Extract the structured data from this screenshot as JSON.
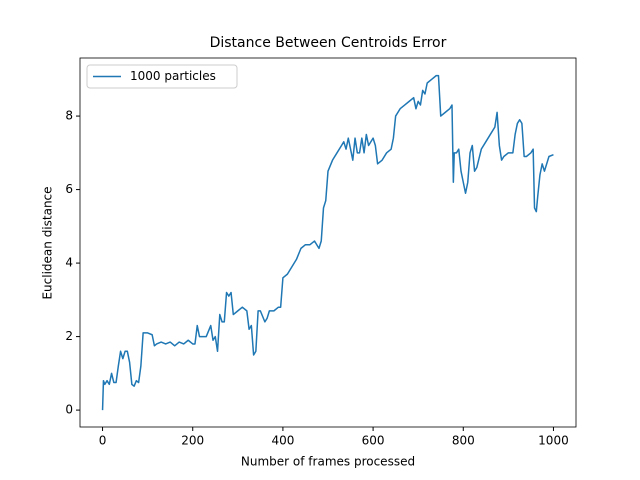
{
  "chart_data": {
    "type": "line",
    "title": "Distance Between Centroids Error",
    "x_label": "Number of frames processed",
    "y_label": "Euclidean distance",
    "x": [
      0,
      2,
      5,
      10,
      15,
      20,
      25,
      30,
      35,
      40,
      45,
      50,
      55,
      60,
      65,
      70,
      75,
      80,
      85,
      90,
      100,
      110,
      115,
      120,
      130,
      140,
      150,
      160,
      170,
      180,
      190,
      200,
      205,
      210,
      215,
      220,
      230,
      240,
      245,
      250,
      255,
      260,
      265,
      270,
      275,
      280,
      285,
      290,
      300,
      310,
      320,
      325,
      330,
      335,
      340,
      345,
      350,
      360,
      365,
      370,
      380,
      390,
      395,
      400,
      410,
      420,
      430,
      440,
      450,
      460,
      470,
      480,
      485,
      490,
      495,
      500,
      510,
      520,
      530,
      535,
      540,
      545,
      550,
      555,
      560,
      565,
      570,
      575,
      580,
      585,
      590,
      600,
      605,
      610,
      620,
      630,
      640,
      645,
      650,
      660,
      670,
      680,
      690,
      695,
      700,
      705,
      710,
      715,
      720,
      730,
      740,
      745,
      750,
      760,
      770,
      775,
      778,
      780,
      785,
      790,
      795,
      800,
      805,
      810,
      815,
      820,
      825,
      830,
      840,
      850,
      860,
      870,
      875,
      880,
      885,
      890,
      900,
      910,
      915,
      920,
      925,
      930,
      935,
      940,
      950,
      955,
      958,
      962,
      965,
      970,
      975,
      980,
      990,
      1000
    ],
    "series": [
      {
        "name": "1000 particles",
        "color": "#1f77b4",
        "values": [
          0.0,
          0.8,
          0.7,
          0.8,
          0.7,
          1.0,
          0.75,
          0.75,
          1.2,
          1.6,
          1.4,
          1.6,
          1.6,
          1.3,
          0.7,
          0.65,
          0.8,
          0.75,
          1.2,
          2.1,
          2.1,
          2.05,
          1.75,
          1.8,
          1.85,
          1.8,
          1.85,
          1.75,
          1.85,
          1.8,
          1.9,
          1.8,
          1.8,
          2.3,
          2.0,
          2.0,
          2.0,
          2.3,
          1.9,
          2.0,
          1.6,
          2.6,
          2.4,
          2.4,
          3.2,
          3.1,
          3.2,
          2.6,
          2.7,
          2.8,
          2.7,
          2.2,
          2.3,
          1.5,
          1.6,
          2.7,
          2.7,
          2.4,
          2.5,
          2.7,
          2.7,
          2.8,
          2.8,
          3.6,
          3.7,
          3.9,
          4.1,
          4.4,
          4.5,
          4.5,
          4.6,
          4.4,
          4.6,
          5.5,
          5.7,
          6.5,
          6.8,
          7.0,
          7.2,
          7.3,
          7.1,
          7.4,
          7.1,
          6.8,
          7.4,
          7.0,
          7.0,
          7.4,
          7.0,
          7.5,
          7.2,
          7.4,
          7.2,
          6.7,
          6.8,
          7.0,
          7.1,
          7.4,
          8.0,
          8.2,
          8.3,
          8.4,
          8.5,
          8.2,
          8.4,
          8.3,
          8.7,
          8.6,
          8.9,
          9.0,
          9.1,
          9.1,
          8.0,
          8.1,
          8.2,
          8.3,
          6.2,
          7.0,
          7.0,
          7.1,
          6.5,
          6.2,
          5.9,
          6.2,
          7.0,
          7.2,
          6.5,
          6.6,
          7.1,
          7.3,
          7.5,
          7.7,
          8.1,
          7.2,
          6.8,
          6.9,
          7.0,
          7.0,
          7.5,
          7.8,
          7.9,
          7.8,
          6.9,
          6.9,
          7.0,
          7.1,
          5.5,
          5.4,
          5.8,
          6.4,
          6.7,
          6.5,
          6.9,
          6.95
        ]
      }
    ],
    "xlim": [
      -50,
      1050
    ],
    "ylim": [
      -0.46,
      9.58
    ],
    "xticks": [
      0,
      200,
      400,
      600,
      800,
      1000
    ],
    "yticks": [
      0,
      2,
      4,
      6,
      8
    ],
    "legend": "upper left"
  }
}
